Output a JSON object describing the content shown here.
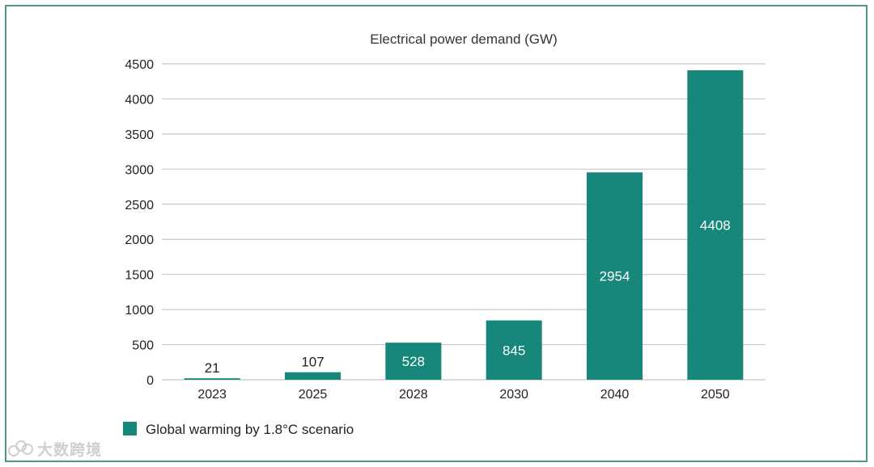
{
  "chart_data": {
    "type": "bar",
    "title": "Electrical power demand (GW)",
    "categories": [
      "2023",
      "2025",
      "2028",
      "2030",
      "2040",
      "2050"
    ],
    "values": [
      21,
      107,
      528,
      845,
      2954,
      4408
    ],
    "ylim": [
      0,
      4500
    ],
    "yticks": [
      0,
      500,
      1000,
      1500,
      2000,
      2500,
      3000,
      3500,
      4000,
      4500
    ],
    "xlabel": "",
    "ylabel": "",
    "grid": true,
    "legend": {
      "position": "bottom-left",
      "entries": [
        "Global warming  by 1.8°C scenario"
      ]
    },
    "colors": {
      "bar": "#16877a",
      "grid": "#c8c8c8",
      "label_inside": "#ffffff",
      "label_outside": "#222222"
    }
  },
  "watermark": {
    "text": "大数跨境"
  }
}
